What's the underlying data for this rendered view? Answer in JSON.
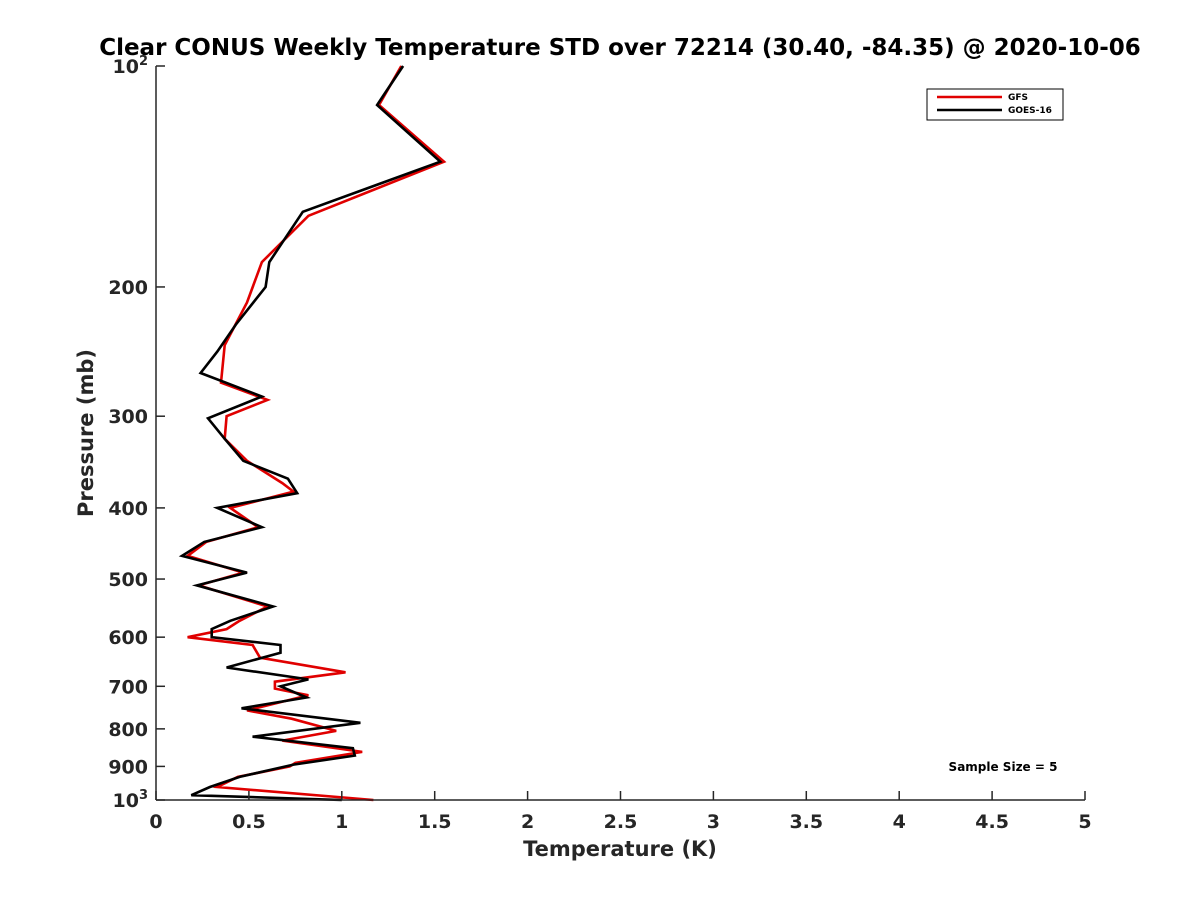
{
  "chart_data": {
    "type": "line",
    "title": "Clear CONUS Weekly Temperature STD over 72214 (30.40, -84.35) @ 2020-10-06",
    "xlabel": "Temperature (K)",
    "ylabel": "Pressure (mb)",
    "xlim": [
      0,
      5
    ],
    "ylim": [
      100,
      1000
    ],
    "yscale": "log",
    "yreversed": true,
    "grid": false,
    "legend_position": "top-right",
    "xticks": [
      0,
      0.5,
      1,
      1.5,
      2,
      2.5,
      3,
      3.5,
      4,
      4.5,
      5
    ],
    "xtick_labels": [
      "0",
      "0.5",
      "1",
      "1.5",
      "2",
      "2.5",
      "3",
      "3.5",
      "4",
      "4.5",
      "5"
    ],
    "yticks": [
      100,
      200,
      300,
      400,
      500,
      600,
      700,
      800,
      900,
      1000
    ],
    "ytick_labels": [
      {
        "base": "10",
        "exp": "2"
      },
      {
        "base": "200",
        "exp": ""
      },
      {
        "base": "300",
        "exp": ""
      },
      {
        "base": "400",
        "exp": ""
      },
      {
        "base": "500",
        "exp": ""
      },
      {
        "base": "600",
        "exp": ""
      },
      {
        "base": "700",
        "exp": ""
      },
      {
        "base": "800",
        "exp": ""
      },
      {
        "base": "900",
        "exp": ""
      },
      {
        "base": "10",
        "exp": "3"
      }
    ],
    "series": [
      {
        "name": "GFS",
        "color": "#e00000",
        "points": [
          [
            1.32,
            100
          ],
          [
            1.2,
            113
          ],
          [
            1.55,
            135
          ],
          [
            0.82,
            160
          ],
          [
            0.57,
            185
          ],
          [
            0.49,
            210
          ],
          [
            0.37,
            240
          ],
          [
            0.35,
            270
          ],
          [
            0.6,
            285
          ],
          [
            0.38,
            300
          ],
          [
            0.37,
            322
          ],
          [
            0.49,
            345
          ],
          [
            0.68,
            370
          ],
          [
            0.74,
            380
          ],
          [
            0.4,
            400
          ],
          [
            0.55,
            425
          ],
          [
            0.27,
            445
          ],
          [
            0.17,
            465
          ],
          [
            0.47,
            490
          ],
          [
            0.23,
            510
          ],
          [
            0.6,
            545
          ],
          [
            0.45,
            570
          ],
          [
            0.38,
            585
          ],
          [
            0.17,
            600
          ],
          [
            0.52,
            615
          ],
          [
            0.56,
            640
          ],
          [
            1.02,
            670
          ],
          [
            0.64,
            690
          ],
          [
            0.64,
            705
          ],
          [
            0.82,
            720
          ],
          [
            0.49,
            755
          ],
          [
            0.73,
            775
          ],
          [
            0.97,
            805
          ],
          [
            0.68,
            830
          ],
          [
            1.11,
            860
          ],
          [
            0.75,
            890
          ],
          [
            0.72,
            900
          ],
          [
            0.44,
            930
          ],
          [
            0.33,
            960
          ],
          [
            1.17,
            1000
          ]
        ]
      },
      {
        "name": "GOES-16",
        "color": "#000000",
        "points": [
          [
            1.33,
            100
          ],
          [
            1.19,
            113
          ],
          [
            1.53,
            135
          ],
          [
            0.79,
            158
          ],
          [
            0.61,
            185
          ],
          [
            0.59,
            200
          ],
          [
            0.43,
            225
          ],
          [
            0.33,
            245
          ],
          [
            0.24,
            262
          ],
          [
            0.57,
            282
          ],
          [
            0.28,
            302
          ],
          [
            0.37,
            322
          ],
          [
            0.47,
            345
          ],
          [
            0.71,
            365
          ],
          [
            0.76,
            382
          ],
          [
            0.33,
            400
          ],
          [
            0.57,
            425
          ],
          [
            0.26,
            445
          ],
          [
            0.14,
            465
          ],
          [
            0.49,
            490
          ],
          [
            0.22,
            510
          ],
          [
            0.63,
            545
          ],
          [
            0.4,
            570
          ],
          [
            0.3,
            585
          ],
          [
            0.3,
            600
          ],
          [
            0.67,
            615
          ],
          [
            0.67,
            630
          ],
          [
            0.38,
            660
          ],
          [
            0.82,
            685
          ],
          [
            0.67,
            700
          ],
          [
            0.81,
            725
          ],
          [
            0.46,
            750
          ],
          [
            1.1,
            785
          ],
          [
            0.52,
            820
          ],
          [
            1.06,
            850
          ],
          [
            1.07,
            870
          ],
          [
            0.74,
            895
          ],
          [
            0.45,
            930
          ],
          [
            0.29,
            960
          ],
          [
            0.19,
            985
          ],
          [
            1.0,
            1000
          ]
        ]
      }
    ],
    "annotations": [
      {
        "text": "Sample Size = 5",
        "position": "bottom-right"
      }
    ]
  }
}
